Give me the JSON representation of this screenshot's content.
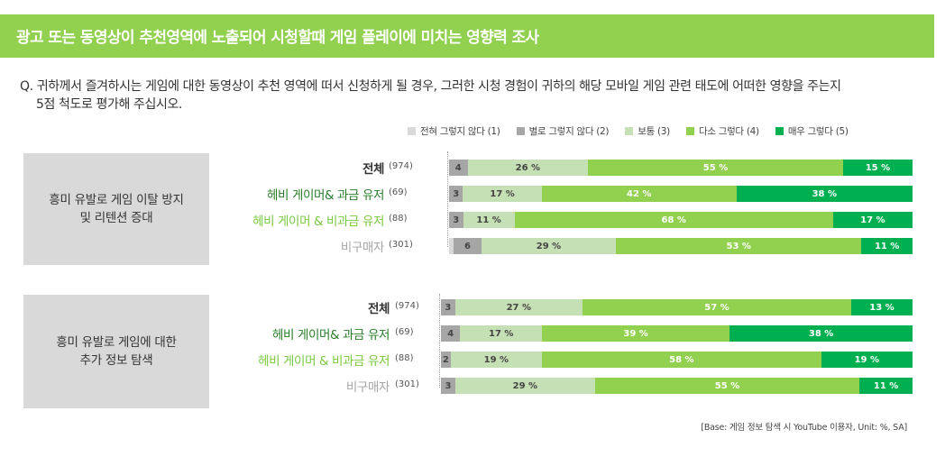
{
  "header": {
    "title": "광고 또는 동영상이 추천영역에 노출되어 시청할때 게임 플레이에 미치는 영향력 조사"
  },
  "question": {
    "line1": "Q. 귀하께서 즐겨하시는 게임에 대한 동영상이 추천 영역에 떠서 신청하게 될 경우, 그러한 시청 경험이 귀하의 해당 모바일 게임 관련 태도에 어떠한 영향을 주는지",
    "line2": "5점 척도로 평가해 주십시오."
  },
  "colors": {
    "header": "#92d050",
    "segments": [
      "#d9d9d9",
      "#a6a6a6",
      "#c5e0b4",
      "#92d050",
      "#00b050"
    ],
    "label_dark_green": "#2a7d2a",
    "label_light_green": "#7ac943",
    "label_gray": "#a6a6a6",
    "label_total": "#333333"
  },
  "legend": [
    {
      "label": "전혀 그렇지 않다 (1)",
      "color": "#d9d9d9"
    },
    {
      "label": "별로 그렇지 않다 (2)",
      "color": "#a6a6a6"
    },
    {
      "label": "보통 (3)",
      "color": "#c5e0b4"
    },
    {
      "label": "다소 그렇다 (4)",
      "color": "#92d050"
    },
    {
      "label": "매우 그렇다 (5)",
      "color": "#00b050"
    }
  ],
  "base_note": "[Base: 게임 정보 탐색 시 YouTube 이용자, Unit: %, SA]",
  "chart_data": {
    "type": "bar",
    "orientation": "horizontal-stacked-100",
    "unit": "%",
    "legend_placement": "top-right",
    "segment_names": [
      "전혀 그렇지 않다 (1)",
      "별로 그렇지 않다 (2)",
      "보통 (3)",
      "다소 그렇다 (4)",
      "매우 그렇다 (5)"
    ],
    "groups": [
      {
        "title_lines": [
          "흥미 유발로 게임 이탈 방지",
          "및 리텐션 증대"
        ],
        "rows": [
          {
            "label": "전체",
            "n": "(974)",
            "style": "total",
            "values": [
              0,
              4,
              26,
              55,
              15
            ],
            "labels": [
              "",
              "4",
              "26 %",
              "55 %",
              "15 %"
            ]
          },
          {
            "label": "헤비 게이머& 과금 유저",
            "n": "(69)",
            "style": "dark_green",
            "values": [
              0,
              3,
              17,
              42,
              38
            ],
            "labels": [
              "",
              "3",
              "17 %",
              "42 %",
              "38 %"
            ]
          },
          {
            "label": "헤비 게이머 & 비과금 유저",
            "n": "(88)",
            "style": "light_green",
            "values": [
              0,
              3,
              11,
              68,
              17
            ],
            "labels": [
              "",
              "3",
              "11 %",
              "68 %",
              "17 %"
            ]
          },
          {
            "label": "비구매자",
            "n": "(301)",
            "style": "gray",
            "values": [
              1,
              6,
              29,
              53,
              11
            ],
            "labels": [
              "",
              "6",
              "29 %",
              "53 %",
              "11 %"
            ]
          }
        ]
      },
      {
        "title_lines": [
          "흥미 유발로 게임에 대한",
          "추가 정보 탐색"
        ],
        "rows": [
          {
            "label": "전체",
            "n": "(974)",
            "style": "total",
            "values": [
              0,
              3,
              27,
              57,
              13
            ],
            "labels": [
              "",
              "3",
              "27 %",
              "57 %",
              "13 %"
            ]
          },
          {
            "label": "헤비 게이머& 과금 유저",
            "n": "(69)",
            "style": "dark_green",
            "values": [
              0,
              4,
              17,
              39,
              38
            ],
            "labels": [
              "",
              "4",
              "17 %",
              "39 %",
              "38 %"
            ]
          },
          {
            "label": "헤비 게이머 & 비과금 유저",
            "n": "(88)",
            "style": "light_green",
            "values": [
              0,
              2,
              19,
              58,
              19
            ],
            "labels": [
              "",
              "2",
              "19 %",
              "58 %",
              "19 %"
            ]
          },
          {
            "label": "비구매자",
            "n": "(301)",
            "style": "gray",
            "values": [
              0,
              3,
              29,
              55,
              11
            ],
            "labels": [
              "",
              "3",
              "29 %",
              "55 %",
              "11 %"
            ]
          }
        ]
      }
    ]
  }
}
